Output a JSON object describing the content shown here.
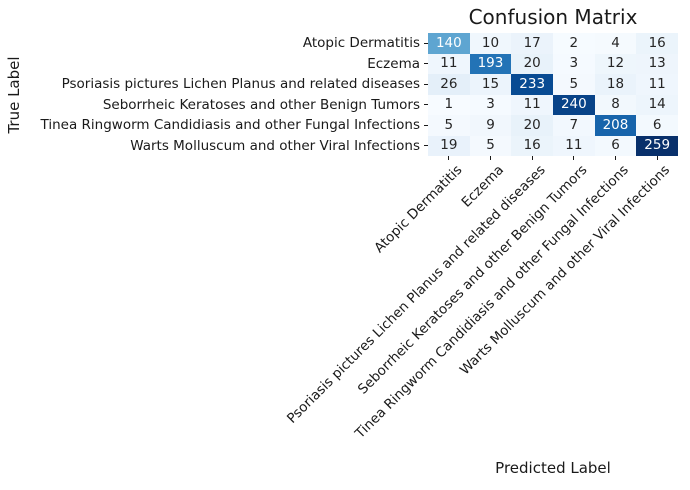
{
  "figure": {
    "background": "#ffffff"
  },
  "chart_data": {
    "type": "heatmap",
    "title": "Confusion Matrix",
    "xlabel": "Predicted Label",
    "ylabel": "True Label",
    "categories": [
      "Atopic Dermatitis",
      "Eczema",
      "Psoriasis pictures Lichen Planus and related diseases",
      "Seborrheic Keratoses and other Benign Tumors",
      "Tinea Ringworm Candidiasis and other Fungal Infections",
      "Warts Molluscum and other Viral Infections"
    ],
    "matrix": [
      [
        140,
        10,
        17,
        2,
        4,
        16
      ],
      [
        11,
        193,
        20,
        3,
        12,
        13
      ],
      [
        26,
        15,
        233,
        5,
        18,
        11
      ],
      [
        1,
        3,
        11,
        240,
        8,
        14
      ],
      [
        5,
        9,
        20,
        7,
        208,
        6
      ],
      [
        19,
        5,
        16,
        11,
        6,
        259
      ]
    ],
    "colormap": "Blues",
    "colormap_stops": [
      "#f7fbff",
      "#deebf7",
      "#c6dbef",
      "#9ecae1",
      "#6baed6",
      "#4292c6",
      "#2171b5",
      "#08519c",
      "#08306b"
    ],
    "vmin": 1,
    "vmax": 259,
    "annotation_color_dark": "#262626",
    "annotation_color_light": "#ffffff",
    "legend": "none",
    "grid": "off"
  }
}
